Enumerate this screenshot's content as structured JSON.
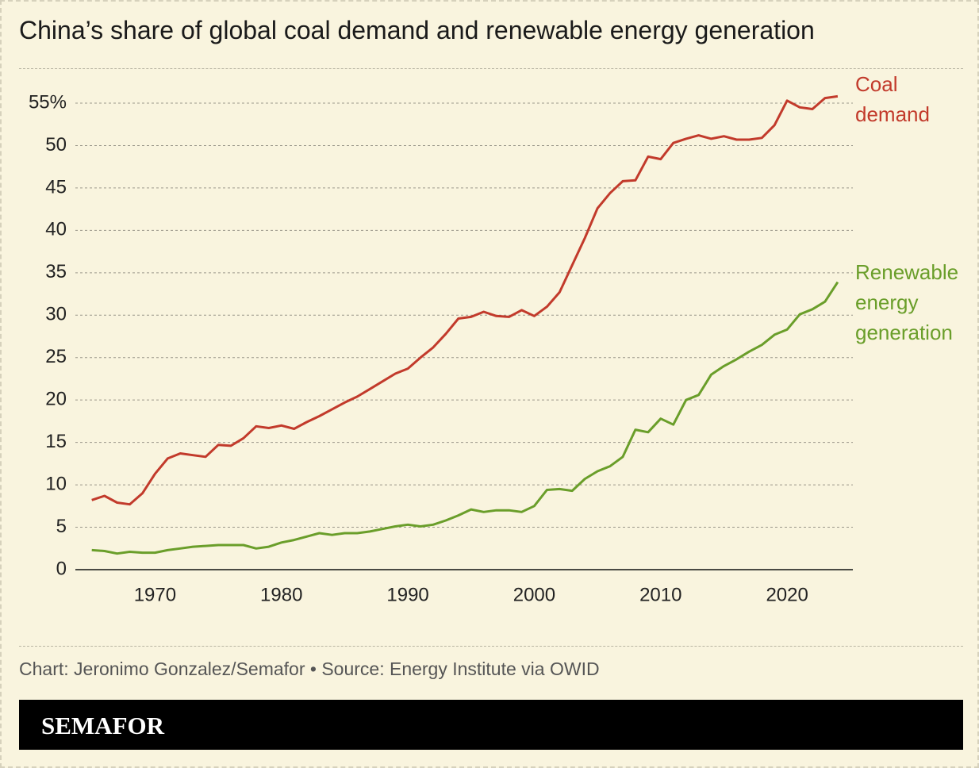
{
  "chart_data": {
    "type": "line",
    "title": "China’s share of global coal demand and renewable energy generation",
    "x": [
      1965,
      1966,
      1967,
      1968,
      1969,
      1970,
      1971,
      1972,
      1973,
      1974,
      1975,
      1976,
      1977,
      1978,
      1979,
      1980,
      1981,
      1982,
      1983,
      1984,
      1985,
      1986,
      1987,
      1988,
      1989,
      1990,
      1991,
      1992,
      1993,
      1994,
      1995,
      1996,
      1997,
      1998,
      1999,
      2000,
      2001,
      2002,
      2003,
      2004,
      2005,
      2006,
      2007,
      2008,
      2009,
      2010,
      2011,
      2012,
      2013,
      2014,
      2015,
      2016,
      2017,
      2018,
      2019,
      2020,
      2021,
      2022,
      2023,
      2024
    ],
    "series": [
      {
        "name": "Coal demand",
        "color": "#c23a2b",
        "values": [
          8.2,
          8.7,
          7.9,
          7.7,
          9.0,
          11.3,
          13.1,
          13.7,
          13.5,
          13.3,
          14.7,
          14.6,
          15.5,
          16.9,
          16.7,
          17.0,
          16.6,
          17.4,
          18.1,
          18.9,
          19.7,
          20.4,
          21.3,
          22.2,
          23.1,
          23.7,
          25.0,
          26.2,
          27.8,
          29.6,
          29.8,
          30.4,
          29.9,
          29.8,
          30.6,
          29.9,
          31.0,
          32.7,
          35.9,
          39.1,
          42.6,
          44.4,
          45.8,
          45.9,
          48.7,
          48.4,
          50.3,
          50.8,
          51.2,
          50.8,
          51.1,
          50.7,
          50.7,
          50.9,
          52.4,
          55.3,
          54.5,
          54.3,
          55.6,
          55.8
        ]
      },
      {
        "name": "Renewable energy generation",
        "color": "#6a9e2a",
        "values": [
          2.3,
          2.2,
          1.9,
          2.1,
          2.0,
          2.0,
          2.3,
          2.5,
          2.7,
          2.8,
          2.9,
          2.9,
          2.9,
          2.5,
          2.7,
          3.2,
          3.5,
          3.9,
          4.3,
          4.1,
          4.3,
          4.3,
          4.5,
          4.8,
          5.1,
          5.3,
          5.1,
          5.3,
          5.8,
          6.4,
          7.1,
          6.8,
          7.0,
          7.0,
          6.8,
          7.5,
          9.4,
          9.5,
          9.3,
          10.7,
          11.6,
          12.2,
          13.3,
          16.5,
          16.2,
          17.8,
          17.1,
          20.0,
          20.6,
          23.0,
          24.0,
          24.8,
          25.7,
          26.5,
          27.7,
          28.3,
          30.1,
          30.7,
          31.6,
          33.9
        ]
      }
    ],
    "xlim": [
      1963.7,
      2025.2
    ],
    "xticks": [
      1970,
      1980,
      1990,
      2000,
      2010,
      2020
    ],
    "ylim": [
      0,
      55
    ],
    "yticks": [
      0,
      5,
      10,
      15,
      20,
      25,
      30,
      35,
      40,
      45,
      50,
      {
        "value": 55,
        "label": "55%"
      }
    ],
    "grid": true,
    "source": "Chart: Jeronimo Gonzalez/Semafor • Source: Energy Institute via OWID",
    "brand": "SEMAFOR"
  }
}
